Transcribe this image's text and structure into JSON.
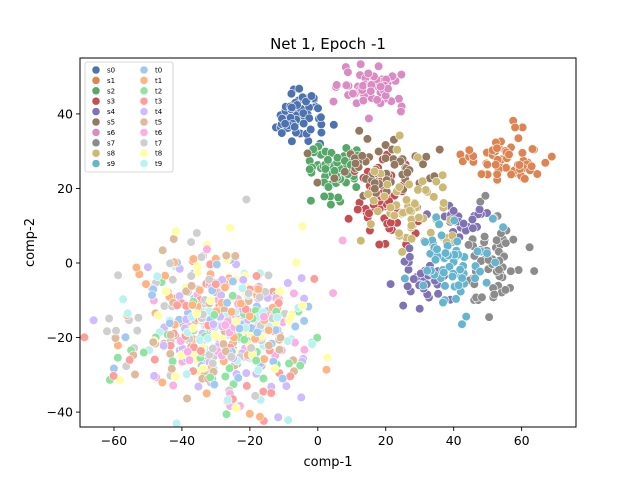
{
  "chart_data": {
    "type": "scatter",
    "title": "Net 1, Epoch -1",
    "xlabel": "comp-1",
    "ylabel": "comp-2",
    "xlim": [
      -70,
      76
    ],
    "ylim": [
      -44,
      55
    ],
    "xticks": [
      -60,
      -40,
      -20,
      0,
      20,
      40,
      60
    ],
    "yticks": [
      -40,
      -20,
      0,
      20,
      40
    ],
    "grid": false,
    "legend_position": "top-left",
    "legend_columns": 2,
    "series": [
      {
        "name": "s0",
        "color": "#4c72b0",
        "clusters": [
          {
            "x": -5,
            "y": 40,
            "sx": 3.5,
            "sy": 4,
            "n": 60
          }
        ]
      },
      {
        "name": "s1",
        "color": "#dd8452",
        "clusters": [
          {
            "x": 55,
            "y": 28,
            "sx": 6,
            "sy": 3.5,
            "n": 60
          }
        ]
      },
      {
        "name": "s2",
        "color": "#55a868",
        "clusters": [
          {
            "x": 5,
            "y": 26,
            "sx": 4.5,
            "sy": 4,
            "n": 60
          }
        ]
      },
      {
        "name": "s3",
        "color": "#c44e52",
        "clusters": [
          {
            "x": 19,
            "y": 16,
            "sx": 4,
            "sy": 5,
            "n": 60
          }
        ]
      },
      {
        "name": "s4",
        "color": "#8172b3",
        "clusters": [
          {
            "x": 33,
            "y": -3,
            "sx": 4,
            "sy": 4,
            "n": 35
          },
          {
            "x": 43,
            "y": 11,
            "sx": 3.5,
            "sy": 2.5,
            "n": 25
          }
        ]
      },
      {
        "name": "s5",
        "color": "#937860",
        "clusters": [
          {
            "x": 20,
            "y": 25,
            "sx": 8,
            "sy": 3,
            "n": 55
          }
        ]
      },
      {
        "name": "s6",
        "color": "#da8bc3",
        "clusters": [
          {
            "x": 15,
            "y": 47,
            "sx": 6,
            "sy": 3,
            "n": 60
          }
        ]
      },
      {
        "name": "s7",
        "color": "#8c8c8c",
        "clusters": [
          {
            "x": 51,
            "y": 0,
            "sx": 4,
            "sy": 6,
            "n": 60
          }
        ]
      },
      {
        "name": "s8",
        "color": "#ccb974",
        "clusters": [
          {
            "x": 28,
            "y": 14,
            "sx": 6,
            "sy": 7,
            "n": 60
          }
        ]
      },
      {
        "name": "s9",
        "color": "#64b5cd",
        "clusters": [
          {
            "x": 39,
            "y": 0,
            "sx": 5,
            "sy": 6,
            "n": 60
          }
        ]
      },
      {
        "name": "t0",
        "color": "#a1c9f4",
        "clusters": [
          {
            "x": -28,
            "y": -18,
            "sx": 13,
            "sy": 9,
            "n": 55
          }
        ]
      },
      {
        "name": "t1",
        "color": "#ffb482",
        "clusters": [
          {
            "x": -30,
            "y": -15,
            "sx": 14,
            "sy": 10,
            "n": 55
          }
        ]
      },
      {
        "name": "t2",
        "color": "#8de5a1",
        "clusters": [
          {
            "x": -28,
            "y": -20,
            "sx": 15,
            "sy": 9,
            "n": 55
          }
        ]
      },
      {
        "name": "t3",
        "color": "#ff9f9b",
        "clusters": [
          {
            "x": -30,
            "y": -17,
            "sx": 14,
            "sy": 10,
            "n": 55
          }
        ]
      },
      {
        "name": "t4",
        "color": "#d0bbff",
        "clusters": [
          {
            "x": -27,
            "y": -17,
            "sx": 14,
            "sy": 10,
            "n": 55
          }
        ]
      },
      {
        "name": "t5",
        "color": "#debb9b",
        "clusters": [
          {
            "x": -30,
            "y": -15,
            "sx": 14,
            "sy": 10,
            "n": 55
          }
        ]
      },
      {
        "name": "t6",
        "color": "#fab0e4",
        "clusters": [
          {
            "x": -25,
            "y": -18,
            "sx": 13,
            "sy": 10,
            "n": 55
          }
        ]
      },
      {
        "name": "t7",
        "color": "#cfcfcf",
        "clusters": [
          {
            "x": -32,
            "y": -15,
            "sx": 13,
            "sy": 10,
            "n": 55
          }
        ]
      },
      {
        "name": "t8",
        "color": "#fffea3",
        "clusters": [
          {
            "x": -28,
            "y": -14,
            "sx": 13,
            "sy": 10,
            "n": 55
          }
        ]
      },
      {
        "name": "t9",
        "color": "#b9f2f0",
        "clusters": [
          {
            "x": -27,
            "y": -19,
            "sx": 13,
            "sy": 9,
            "n": 55
          }
        ]
      }
    ]
  }
}
